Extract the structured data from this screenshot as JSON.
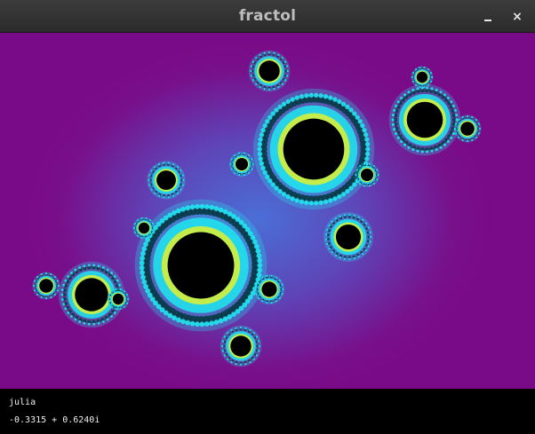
{
  "window": {
    "title": "fractol",
    "minimize_label": "",
    "close_label": "×"
  },
  "info": {
    "fractal_name": "julia",
    "parameter": "-0.3315 + 0.6240i"
  },
  "colors": {
    "background_outer": "#7a0b88",
    "background_glow": "#4a6fd6",
    "ring_cyan": "#1fe6ef",
    "ring_yellow": "#d6f03a",
    "interior": "#000000"
  }
}
